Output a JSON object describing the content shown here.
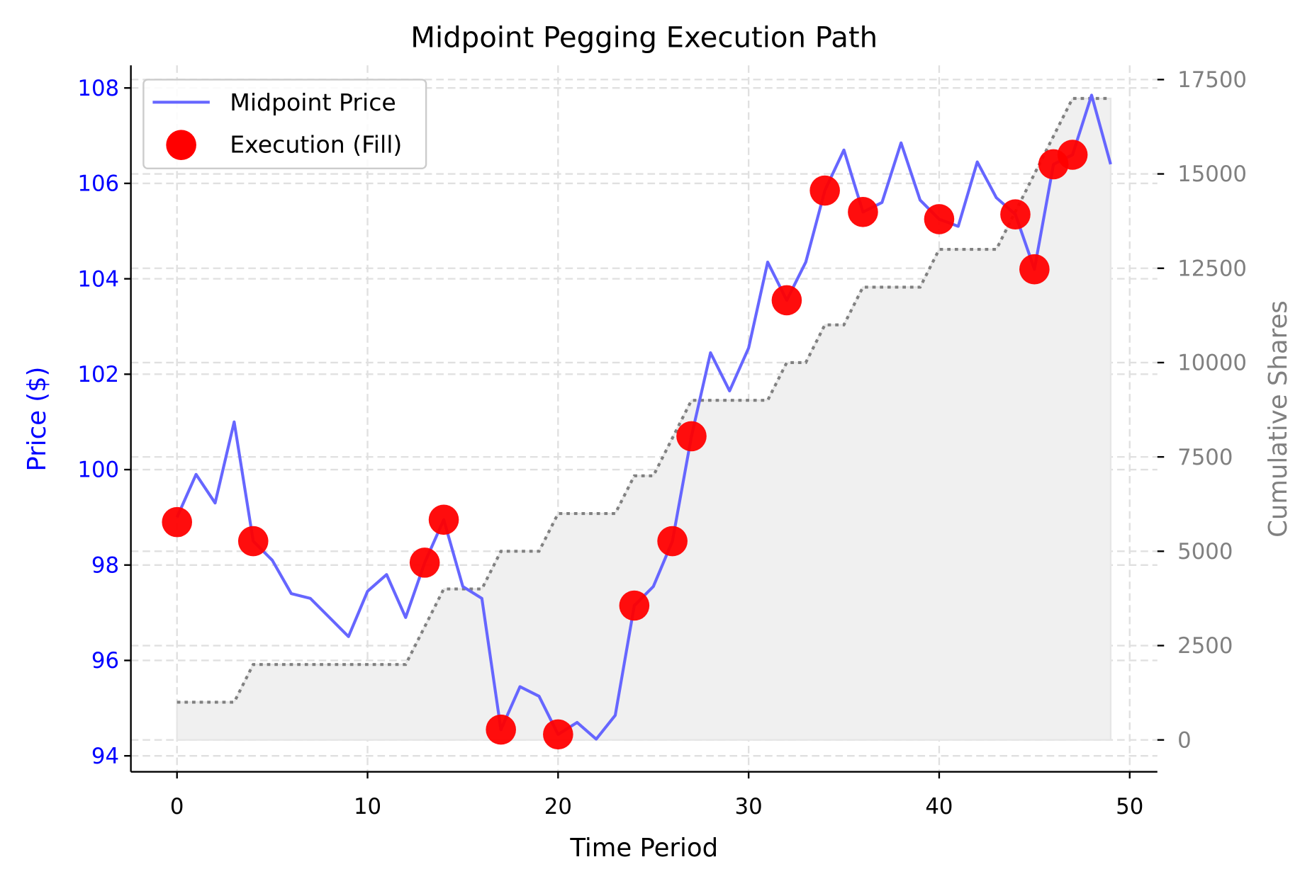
{
  "chart_data": {
    "type": "line",
    "title": "Midpoint Pegging Execution Path",
    "xlabel": "Time Period",
    "ylabel": "Price ($)",
    "y2label": "Cumulative Shares",
    "xlim": [
      -2.5,
      51.5
    ],
    "ylim": [
      93.7,
      108.5
    ],
    "y2lim": [
      -800,
      18000
    ],
    "xticks": [
      0,
      10,
      20,
      30,
      40,
      50
    ],
    "yticks": [
      94,
      96,
      98,
      100,
      102,
      104,
      106,
      108
    ],
    "y2ticks": [
      0,
      2500,
      5000,
      7500,
      10000,
      12500,
      15000,
      17500
    ],
    "grid": true,
    "legend_position": "top-left",
    "colors": {
      "price": "#6666ff",
      "fill": "#ff0000",
      "shares": "#808080",
      "shares_area": "#f0f0f0",
      "left_axis": "#0000ff",
      "right_axis": "#808080"
    },
    "series": [
      {
        "name": "Midpoint Price",
        "x": [
          0,
          1,
          2,
          3,
          4,
          5,
          6,
          7,
          8,
          9,
          10,
          11,
          12,
          13,
          14,
          15,
          16,
          17,
          18,
          19,
          20,
          21,
          22,
          23,
          24,
          25,
          26,
          27,
          28,
          29,
          30,
          31,
          32,
          33,
          34,
          35,
          36,
          37,
          38,
          39,
          40,
          41,
          42,
          43,
          44,
          45,
          46,
          47,
          48,
          49
        ],
        "y": [
          99.0,
          99.9,
          99.3,
          101.0,
          98.5,
          98.1,
          97.4,
          97.3,
          96.9,
          96.5,
          97.45,
          97.8,
          96.9,
          98.05,
          98.95,
          97.55,
          97.3,
          94.55,
          95.45,
          95.25,
          94.45,
          94.7,
          94.35,
          94.85,
          97.15,
          97.55,
          98.5,
          100.7,
          102.45,
          101.65,
          102.55,
          104.35,
          103.55,
          104.35,
          105.85,
          106.7,
          105.4,
          105.6,
          106.85,
          105.65,
          105.25,
          105.1,
          106.45,
          105.7,
          105.35,
          104.2,
          106.4,
          106.6,
          107.85,
          106.4
        ]
      },
      {
        "name": "Execution (Fill)",
        "x": [
          0,
          4,
          13,
          14,
          17,
          20,
          24,
          26,
          27,
          32,
          34,
          36,
          40,
          44,
          45,
          46,
          47
        ],
        "y": [
          98.9,
          98.5,
          98.05,
          98.95,
          94.55,
          94.45,
          97.15,
          98.5,
          100.7,
          103.55,
          105.85,
          105.4,
          105.25,
          105.35,
          104.2,
          106.4,
          106.6
        ]
      },
      {
        "axis": "right",
        "x": [
          0,
          1,
          2,
          3,
          4,
          5,
          6,
          7,
          8,
          9,
          10,
          11,
          12,
          13,
          14,
          15,
          16,
          17,
          18,
          19,
          20,
          21,
          22,
          23,
          24,
          25,
          26,
          27,
          28,
          29,
          30,
          31,
          32,
          33,
          34,
          35,
          36,
          37,
          38,
          39,
          40,
          41,
          42,
          43,
          44,
          45,
          46,
          47,
          48,
          49
        ],
        "y": [
          1000,
          1000,
          1000,
          1000,
          2000,
          2000,
          2000,
          2000,
          2000,
          2000,
          2000,
          2000,
          2000,
          3000,
          4000,
          4000,
          4000,
          5000,
          5000,
          5000,
          6000,
          6000,
          6000,
          6000,
          7000,
          7000,
          8000,
          9000,
          9000,
          9000,
          9000,
          9000,
          10000,
          10000,
          11000,
          11000,
          12000,
          12000,
          12000,
          12000,
          13000,
          13000,
          13000,
          13000,
          14000,
          15000,
          16000,
          17000,
          17000,
          17000
        ]
      }
    ]
  }
}
